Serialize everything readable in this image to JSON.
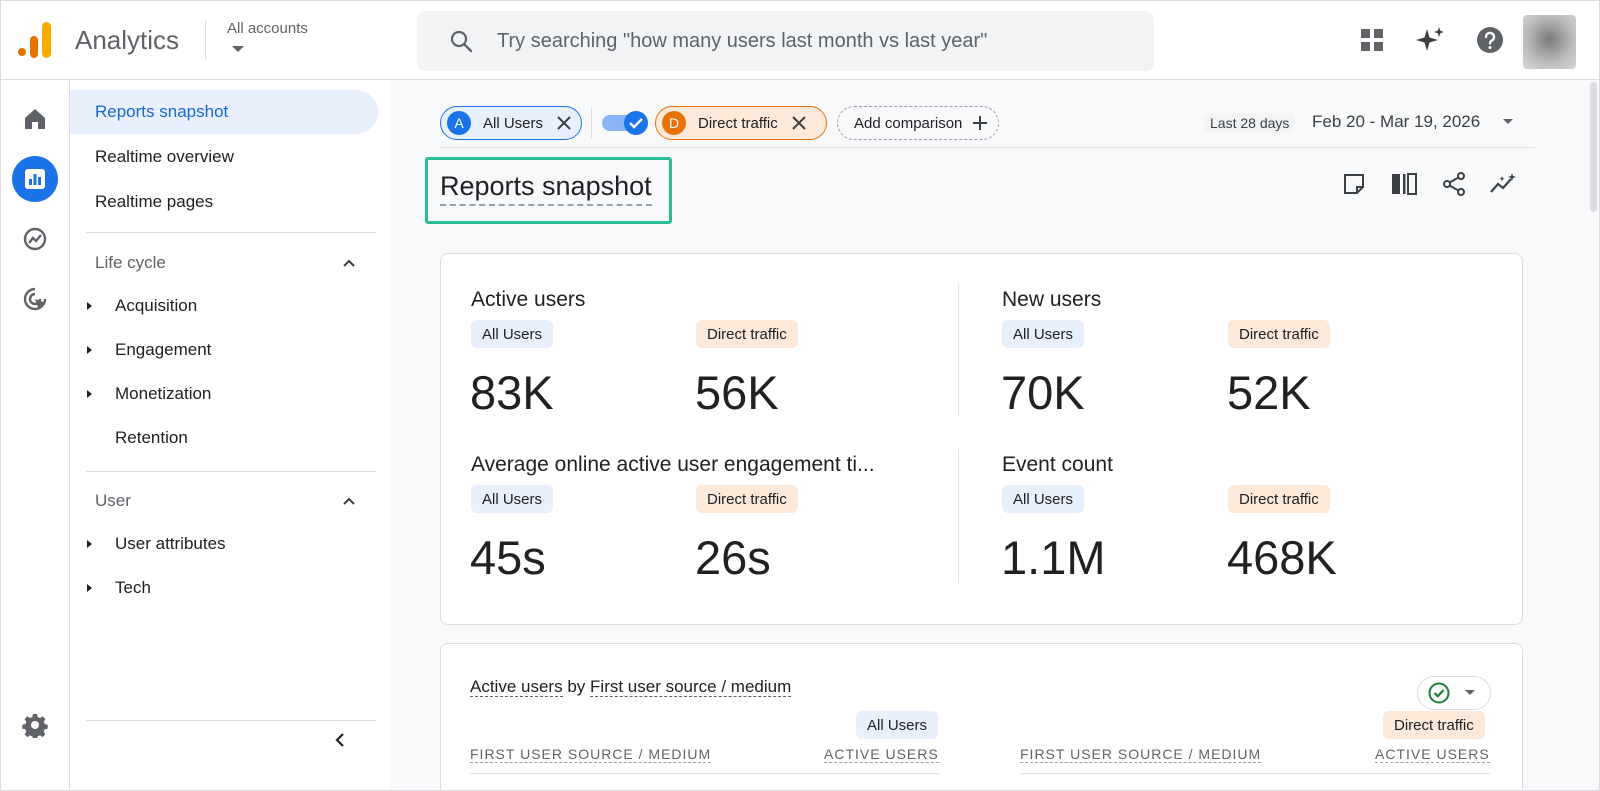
{
  "header": {
    "app_name": "Analytics",
    "account_label": "All accounts",
    "search_placeholder": "Try searching \"how many users last month vs last year\""
  },
  "sidenav": {
    "items": [
      {
        "label": "Reports snapshot",
        "active": true
      },
      {
        "label": "Realtime overview"
      },
      {
        "label": "Realtime pages"
      }
    ],
    "lifecycle": {
      "title": "Life cycle",
      "items": [
        "Acquisition",
        "Engagement",
        "Monetization",
        "Retention"
      ]
    },
    "user": {
      "title": "User",
      "items": [
        "User attributes",
        "Tech"
      ]
    }
  },
  "comparisons": {
    "chips": [
      {
        "badge": "A",
        "label": "All Users",
        "color": "#1a73e8"
      },
      {
        "badge": "D",
        "label": "Direct traffic",
        "color": "#e8710a"
      }
    ],
    "add_label": "Add comparison"
  },
  "date": {
    "tag": "Last 28 days",
    "range": "Feb 20 - Mar 19, 2026"
  },
  "page_title": "Reports snapshot",
  "metrics": [
    {
      "label": "Active users",
      "seg_a": "All Users",
      "seg_b": "Direct traffic",
      "value_a": "83K",
      "value_b": "56K"
    },
    {
      "label": "New users",
      "seg_a": "All Users",
      "seg_b": "Direct traffic",
      "value_a": "70K",
      "value_b": "52K"
    },
    {
      "label": "Average online active user engagement ti...",
      "seg_a": "All Users",
      "seg_b": "Direct traffic",
      "value_a": "45s",
      "value_b": "26s"
    },
    {
      "label": "Event count",
      "seg_a": "All Users",
      "seg_b": "Direct traffic",
      "value_a": "1.1M",
      "value_b": "468K"
    }
  ],
  "table": {
    "title_metric": "Active users",
    "title_by": "by",
    "title_dim": "First user source / medium",
    "seg_a": "All Users",
    "seg_b": "Direct traffic",
    "col_dim": "FIRST USER SOURCE / MEDIUM",
    "col_metric": "ACTIVE USERS"
  },
  "colors": {
    "accent": "#1a73e8",
    "highlight": "#2bbd98",
    "segment_b": "#e8710a"
  }
}
